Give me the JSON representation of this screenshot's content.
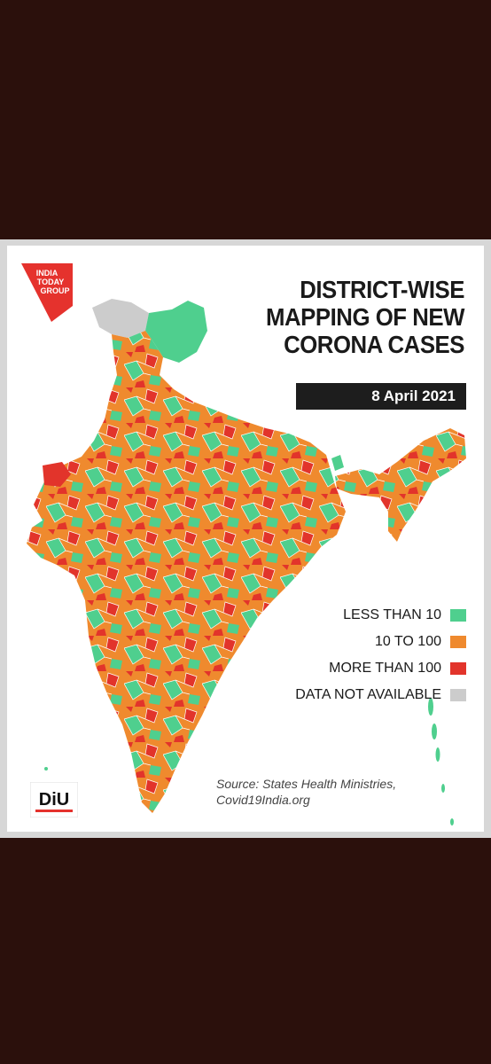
{
  "logo": {
    "line1": "INDIA",
    "line2": "TODAY",
    "line3": "GROUP",
    "color": "#e5322d"
  },
  "title": {
    "line1": "DISTRICT-WISE",
    "line2": "MAPPING OF NEW",
    "line3": "CORONA CASES"
  },
  "date": "8 April 2021",
  "legend": [
    {
      "label": "LESS THAN 10",
      "color": "#4fcf8e"
    },
    {
      "label": "10 TO 100",
      "color": "#ef8a2e"
    },
    {
      "label": "MORE THAN 100",
      "color": "#e2342b"
    },
    {
      "label": "DATA NOT AVAILABLE",
      "color": "#cccccc"
    }
  ],
  "source": {
    "line1": "Source: States Health Ministries,",
    "line2": "Covid19India.org"
  },
  "diu": {
    "label": "DiU"
  }
}
